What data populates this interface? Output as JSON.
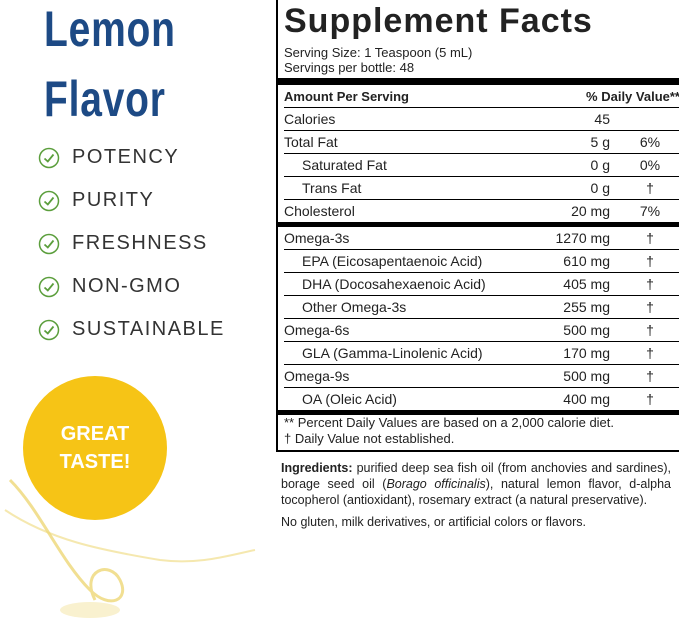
{
  "left": {
    "title": [
      "Lemon",
      "Flavor"
    ],
    "checklist": [
      "POTENCY",
      "PURITY",
      "FRESHNESS",
      "NON-GMO",
      "SUSTAINABLE"
    ],
    "badge": [
      "GREAT",
      "TASTE!"
    ]
  },
  "facts": {
    "title": "Supplement Facts",
    "serving": [
      "Serving Size: 1 Teaspoon (5 mL)",
      "Servings per bottle: 48"
    ],
    "header": [
      "Amount Per Serving",
      "% Daily Value**"
    ],
    "sections": [
      [
        {
          "name": "Calories",
          "amount": "45"
        },
        {
          "name": "Total Fat",
          "amount": "5 g",
          "dv": "6%"
        },
        {
          "name": "Saturated Fat",
          "amount": "0 g",
          "dv": "0%",
          "indent": true
        },
        {
          "name": "Trans Fat",
          "amount": "0 g",
          "dv": "†",
          "indent": true
        },
        {
          "name": "Cholesterol",
          "amount": "20 mg",
          "dv": "7%"
        }
      ],
      [
        {
          "name": "Omega-3s",
          "amount": "1270 mg",
          "dv": "†"
        },
        {
          "name": "EPA (Eicosapentaenoic Acid)",
          "amount": "610 mg",
          "dv": "†",
          "indent": true
        },
        {
          "name": "DHA (Docosahexaenoic Acid)",
          "amount": "405 mg",
          "dv": "†",
          "indent": true
        },
        {
          "name": "Other Omega-3s",
          "amount": "255 mg",
          "dv": "†",
          "indent": true
        },
        {
          "name": "Omega-6s",
          "amount": "500 mg",
          "dv": "†"
        },
        {
          "name": "GLA (Gamma-Linolenic Acid)",
          "amount": "170 mg",
          "dv": "†",
          "indent": true
        },
        {
          "name": "Omega-9s",
          "amount": "500 mg",
          "dv": "†"
        },
        {
          "name": "OA (Oleic Acid)",
          "amount": "400 mg",
          "dv": "†",
          "indent": true
        }
      ]
    ],
    "footnotes": [
      "** Percent Daily Values are based on a 2,000 calorie diet.",
      "†  Daily Value not established."
    ]
  },
  "ingredients": {
    "label": "Ingredients:",
    "text": " purified deep sea fish oil (from anchovies and sardines), borage seed oil (",
    "italic": "Borago officinalis",
    "text2": "), natural lemon flavor, d-alpha tocopherol (antioxidant), rosemary extract (a natural preservative).",
    "note": "No gluten, milk derivatives, or artificial colors or flavors."
  }
}
